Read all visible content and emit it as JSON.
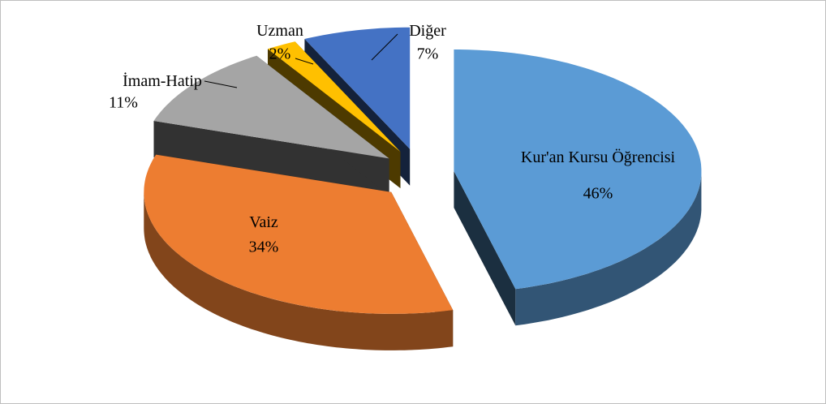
{
  "chart_data": {
    "type": "pie3d",
    "categories": [
      "Kur'an Kursu Öğrencisi",
      "Vaiz",
      "İmam-Hatip",
      "Uzman",
      "Diğer"
    ],
    "values": [
      46,
      34,
      11,
      2,
      7
    ],
    "value_labels": [
      "46%",
      "34%",
      "11%",
      "2%",
      "7%"
    ],
    "colors": [
      "#5b9bd5",
      "#ed7d31",
      "#a5a5a5",
      "#ffc000",
      "#4472c4"
    ]
  }
}
